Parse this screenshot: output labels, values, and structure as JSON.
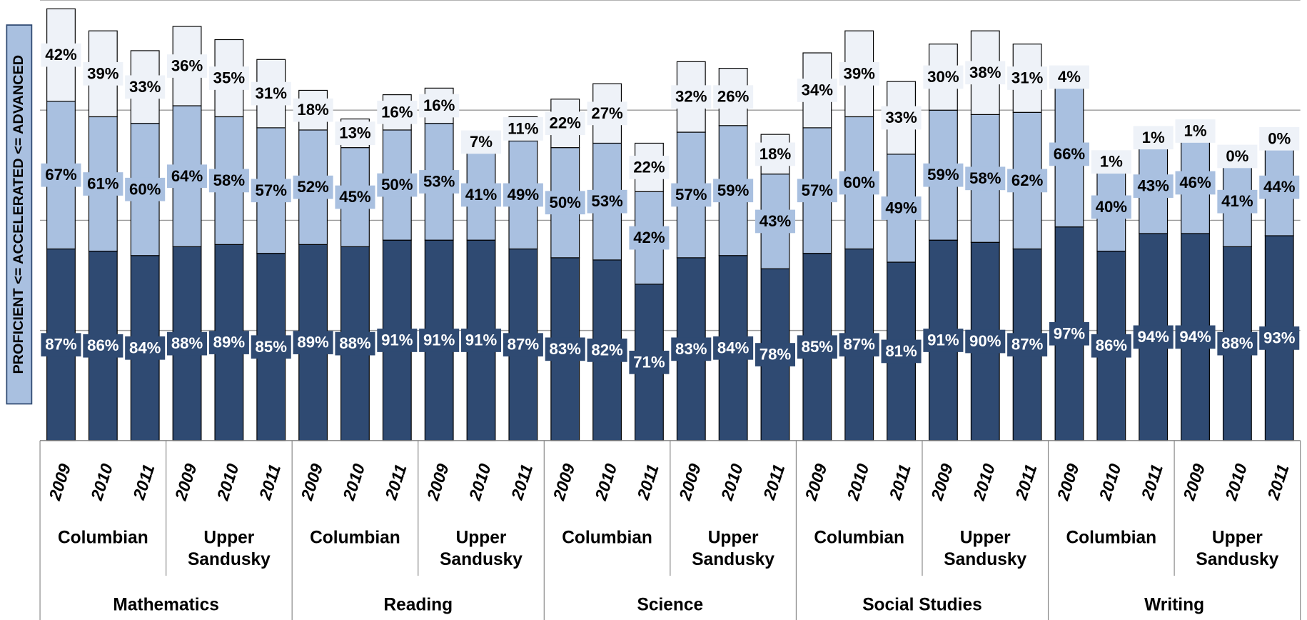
{
  "chart_data": {
    "type": "stacked-bar",
    "y_label": "PROFICIENT <= ACCELERATED <= ADVANCED",
    "categories": [
      "2009",
      "2010",
      "2011",
      "2009",
      "2010",
      "2011",
      "2009",
      "2010",
      "2011",
      "2009",
      "2010",
      "2011",
      "2009",
      "2010",
      "2011",
      "2009",
      "2010",
      "2011",
      "2009",
      "2010",
      "2011",
      "2009",
      "2010",
      "2011",
      "2009",
      "2010",
      "2011",
      "2009",
      "2010",
      "2011"
    ],
    "groups": [
      "Columbian",
      "Upper Sandusky",
      "Columbian",
      "Upper Sandusky",
      "Columbian",
      "Upper Sandusky",
      "Columbian",
      "Upper Sandusky",
      "Columbian",
      "Upper Sandusky"
    ],
    "subjects": [
      "Mathematics",
      "Reading",
      "Science",
      "Social Studies",
      "Writing"
    ],
    "ylim": [
      0,
      200
    ],
    "yticks": [
      0,
      50,
      100,
      150,
      200
    ],
    "grid": true,
    "series": [
      {
        "color": "#2f4a72",
        "label_color": "#ffffff",
        "values": [
          87,
          86,
          84,
          88,
          89,
          85,
          89,
          88,
          91,
          91,
          91,
          87,
          83,
          82,
          71,
          83,
          84,
          78,
          85,
          87,
          81,
          91,
          90,
          87,
          97,
          86,
          94,
          94,
          88,
          93
        ],
        "value_labels": [
          "87%",
          "86%",
          "84%",
          "88%",
          "89%",
          "85%",
          "89%",
          "88%",
          "91%",
          "91%",
          "91%",
          "87%",
          "83%",
          "82%",
          "71%",
          "83%",
          "84%",
          "78%",
          "85%",
          "87%",
          "81%",
          "91%",
          "90%",
          "87%",
          "97%",
          "86%",
          "94%",
          "94%",
          "88%",
          "93%"
        ]
      },
      {
        "color": "#a9c0e0",
        "label_color": "#000000",
        "values": [
          67,
          61,
          60,
          64,
          58,
          57,
          52,
          45,
          50,
          53,
          41,
          49,
          50,
          53,
          42,
          57,
          59,
          43,
          57,
          60,
          49,
          59,
          58,
          62,
          66,
          40,
          43,
          46,
          41,
          44
        ],
        "value_labels": [
          "67%",
          "61%",
          "60%",
          "64%",
          "58%",
          "57%",
          "52%",
          "45%",
          "50%",
          "53%",
          "41%",
          "49%",
          "50%",
          "53%",
          "42%",
          "57%",
          "59%",
          "43%",
          "57%",
          "60%",
          "49%",
          "59%",
          "58%",
          "62%",
          "66%",
          "40%",
          "43%",
          "46%",
          "41%",
          "44%"
        ]
      },
      {
        "color": "#eef2f8",
        "label_color": "#000000",
        "values": [
          42,
          39,
          33,
          36,
          35,
          31,
          18,
          13,
          16,
          16,
          7,
          11,
          22,
          27,
          22,
          32,
          26,
          18,
          34,
          39,
          33,
          30,
          38,
          31,
          4,
          1,
          1,
          1,
          0,
          0
        ],
        "value_labels": [
          "42%",
          "39%",
          "33%",
          "36%",
          "35%",
          "31%",
          "18%",
          "13%",
          "16%",
          "16%",
          "7%",
          "11%",
          "22%",
          "27%",
          "22%",
          "32%",
          "26%",
          "18%",
          "34%",
          "39%",
          "33%",
          "30%",
          "38%",
          "31%",
          "4%",
          "1%",
          "1%",
          "1%",
          "0%",
          "0%"
        ]
      }
    ]
  }
}
